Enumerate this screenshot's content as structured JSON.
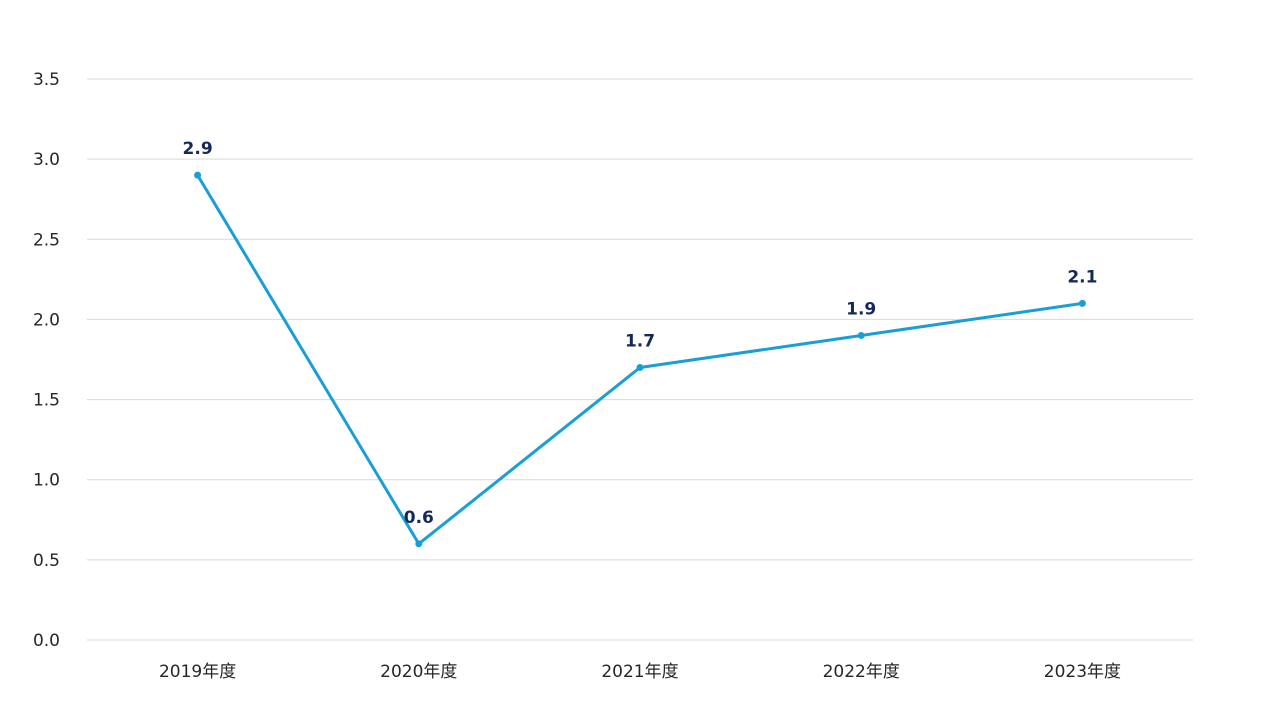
{
  "chart_data": {
    "type": "line",
    "title": "",
    "xlabel": "",
    "ylabel": "",
    "categories": [
      "2019年度",
      "2020年度",
      "2021年度",
      "2022年度",
      "2023年度"
    ],
    "series": [
      {
        "values": [
          2.9,
          0.6,
          1.7,
          1.9,
          2.1
        ],
        "color": "#1a9fd4"
      }
    ],
    "data_labels": [
      "2.9",
      "0.6",
      "1.7",
      "1.9",
      "2.1"
    ],
    "ylim": [
      0,
      3.5
    ],
    "yticks": [
      "0.0",
      "0.5",
      "1.0",
      "1.5",
      "2.0",
      "2.5",
      "3.0",
      "3.5"
    ],
    "grid": true,
    "legend": "none"
  }
}
